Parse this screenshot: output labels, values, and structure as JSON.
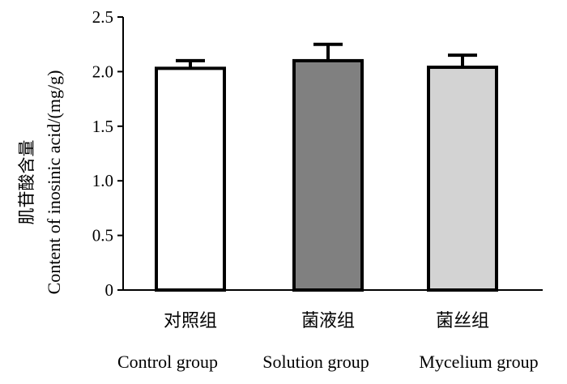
{
  "chart_data": {
    "type": "bar",
    "title": "",
    "ylabel_cn": "肌苷酸含量",
    "ylabel": "Content of inosinic acid/(mg/g)",
    "xlabel": "",
    "categories_cn": [
      "对照组",
      "菌液组",
      "菌丝组"
    ],
    "categories": [
      "Control group",
      "Solution group",
      "Mycelium group"
    ],
    "values": [
      2.03,
      2.1,
      2.04
    ],
    "errors": [
      0.07,
      0.15,
      0.11
    ],
    "colors": [
      "#ffffff",
      "#808080",
      "#d3d3d3"
    ],
    "ylim": [
      0,
      2.5
    ],
    "yticks": [
      "0",
      "0.5",
      "1.0",
      "1.5",
      "2.0",
      "2.5"
    ],
    "grid": false
  }
}
